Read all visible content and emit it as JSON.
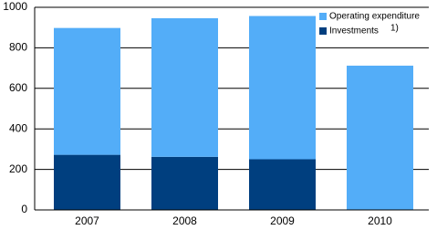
{
  "chart_data": {
    "type": "stacked_bar",
    "categories": [
      "2007",
      "2008",
      "2009",
      "2010"
    ],
    "series": [
      {
        "name": "Investments",
        "color": "#003f7f",
        "values": [
          272,
          262,
          250,
          null
        ]
      },
      {
        "name": "Operating expenditure",
        "color": "#53adf8",
        "values": [
          626,
          684,
          707,
          712
        ]
      }
    ],
    "legend_note": "1)",
    "ylim": [
      0,
      1000
    ],
    "yticks": [
      0,
      200,
      400,
      600,
      800,
      1000
    ],
    "grid": true,
    "legend": "upper right"
  }
}
